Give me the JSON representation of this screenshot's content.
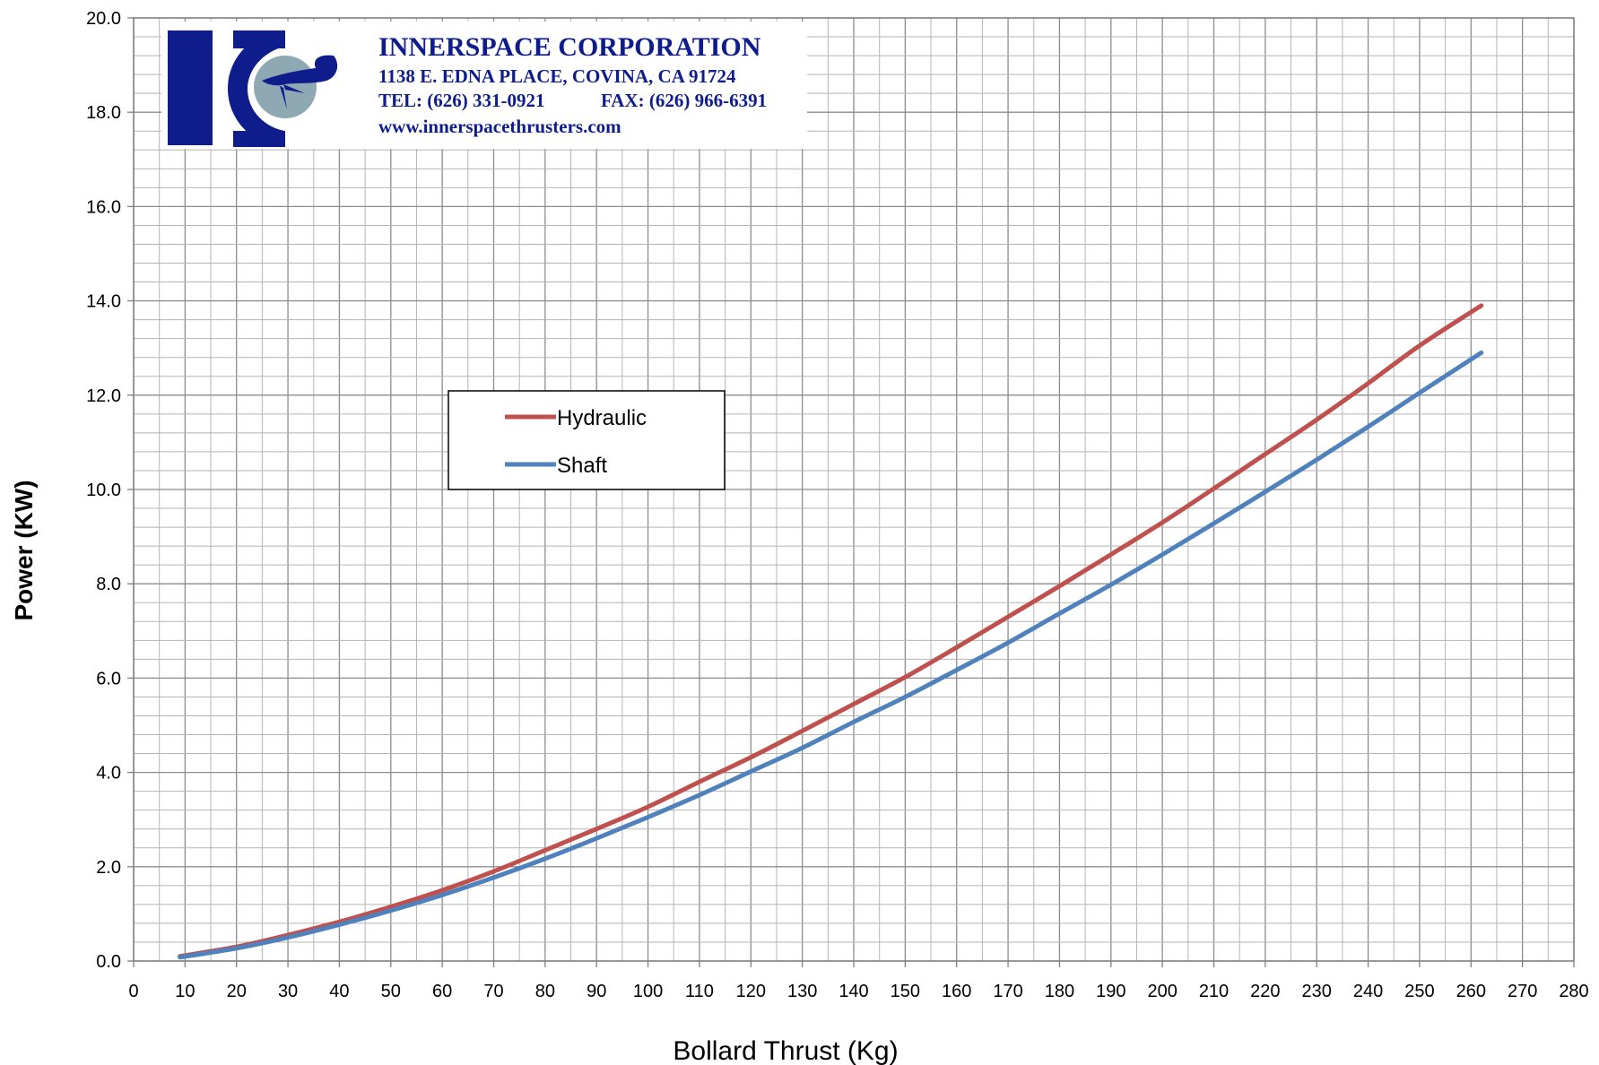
{
  "logo": {
    "company": "INNERSPACE CORPORATION",
    "address": "1138 E. EDNA PLACE, COVINA, CA 91724",
    "tel": "TEL:  (626) 331-0921",
    "fax": "FAX: (626) 966-6391",
    "web": "www.innerspacethrusters.com",
    "colors": {
      "brand": "#0f1d8c",
      "disc": "#8fa9b4",
      "background": "#ffffff"
    }
  },
  "chart_data": {
    "type": "line",
    "title": "",
    "xlabel": "Bollard Thrust (Kg)",
    "ylabel": "Power (KW)",
    "xlim": [
      0,
      280
    ],
    "ylim": [
      0,
      20
    ],
    "x_major_ticks": [
      0,
      10,
      20,
      30,
      40,
      50,
      60,
      70,
      80,
      90,
      100,
      110,
      120,
      130,
      140,
      150,
      160,
      170,
      180,
      190,
      200,
      210,
      220,
      230,
      240,
      250,
      260,
      270,
      280
    ],
    "x_minor_step": 5,
    "y_ticks": [
      "0.0",
      "2.0",
      "4.0",
      "6.0",
      "8.0",
      "10.0",
      "12.0",
      "14.0",
      "16.0",
      "18.0",
      "20.0"
    ],
    "y_minor_step": 0.4,
    "grid": true,
    "legend_position": "upper-left, inside plot",
    "series": [
      {
        "name": "Hydraulic",
        "color": "#c0504d",
        "x": [
          9,
          20,
          30,
          40,
          50,
          60,
          70,
          80,
          90,
          100,
          110,
          120,
          130,
          140,
          150,
          160,
          170,
          180,
          190,
          200,
          210,
          220,
          230,
          240,
          250,
          262
        ],
        "y": [
          0.1,
          0.3,
          0.55,
          0.83,
          1.15,
          1.5,
          1.9,
          2.35,
          2.8,
          3.27,
          3.8,
          4.32,
          4.88,
          5.45,
          6.02,
          6.65,
          7.3,
          7.95,
          8.62,
          9.3,
          10.02,
          10.75,
          11.48,
          12.25,
          13.05,
          13.9
        ]
      },
      {
        "name": "Shaft",
        "color": "#4f81bd",
        "x": [
          9,
          20,
          30,
          40,
          50,
          60,
          70,
          80,
          90,
          100,
          110,
          120,
          130,
          140,
          150,
          160,
          170,
          180,
          190,
          200,
          210,
          220,
          230,
          240,
          250,
          262
        ],
        "y": [
          0.08,
          0.27,
          0.5,
          0.77,
          1.07,
          1.4,
          1.77,
          2.17,
          2.6,
          3.05,
          3.52,
          4.02,
          4.52,
          5.07,
          5.6,
          6.17,
          6.75,
          7.37,
          7.98,
          8.62,
          9.28,
          9.95,
          10.63,
          11.33,
          12.05,
          12.9
        ]
      }
    ]
  }
}
